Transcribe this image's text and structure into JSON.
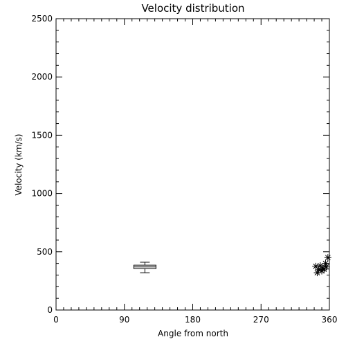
{
  "chart_data": {
    "type": "scatter",
    "title": "Velocity distribution",
    "xlabel": "Angle from north",
    "ylabel": "Velocity (km/s)",
    "xlim": [
      0,
      360
    ],
    "ylim": [
      0,
      2500
    ],
    "xticks": [
      0,
      90,
      180,
      270,
      360
    ],
    "yticks": [
      0,
      500,
      1000,
      1500,
      2000,
      2500
    ],
    "x_minor_step": 10,
    "y_minor_step": 100,
    "grid": false,
    "boxplot": {
      "x": 117,
      "whisker_low": 320,
      "q1": 355,
      "median": 370,
      "q3": 385,
      "whisker_high": 410
    },
    "points": [
      {
        "x": 342,
        "y": 375
      },
      {
        "x": 344,
        "y": 320
      },
      {
        "x": 346,
        "y": 345
      },
      {
        "x": 348,
        "y": 380
      },
      {
        "x": 350,
        "y": 335
      },
      {
        "x": 351,
        "y": 360
      },
      {
        "x": 353,
        "y": 350
      },
      {
        "x": 355,
        "y": 400
      },
      {
        "x": 356,
        "y": 370
      },
      {
        "x": 358,
        "y": 450
      }
    ]
  }
}
